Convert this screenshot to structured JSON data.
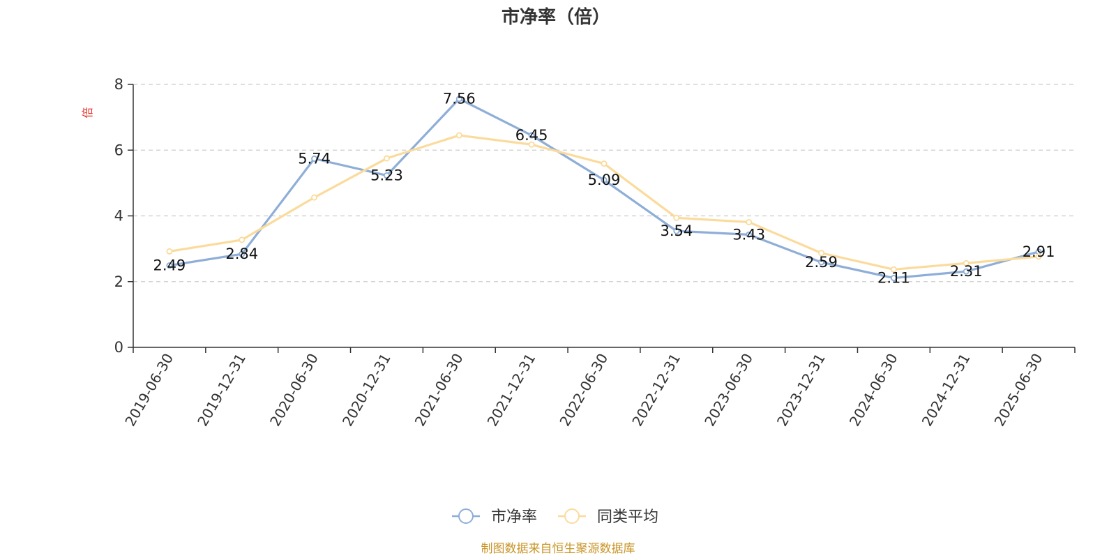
{
  "chart_data": {
    "type": "line",
    "title": "市净率（倍）",
    "ylabel": "倍",
    "ylim": [
      0,
      8
    ],
    "yticks": [
      0,
      2,
      4,
      6,
      8
    ],
    "grid": "horizontal-dashed",
    "legend_position": "bottom-center",
    "categories": [
      "2019-06-30",
      "2019-12-31",
      "2020-06-30",
      "2020-12-31",
      "2021-06-30",
      "2021-12-31",
      "2022-06-30",
      "2022-12-31",
      "2023-06-30",
      "2023-12-31",
      "2024-06-30",
      "2024-12-31",
      "2025-06-30"
    ],
    "series": [
      {
        "name": "市净率",
        "color": "#8eaed8",
        "values": [
          2.49,
          2.84,
          5.74,
          5.23,
          7.56,
          6.45,
          5.09,
          3.54,
          3.43,
          2.59,
          2.11,
          2.31,
          2.91
        ],
        "labels": [
          "2.49",
          "2.84",
          "5.74",
          "5.23",
          "7.56",
          "6.45",
          "5.09",
          "3.54",
          "3.43",
          "2.59",
          "2.11",
          "2.31",
          "2.91"
        ]
      },
      {
        "name": "同类平均",
        "color": "#fbdb9c",
        "values": [
          2.92,
          3.27,
          4.56,
          5.75,
          6.45,
          6.17,
          5.59,
          3.94,
          3.81,
          2.87,
          2.37,
          2.56,
          2.76
        ]
      }
    ],
    "source": "制图数据来自恒生聚源数据库",
    "colors": {
      "ylabel": "#e8322a",
      "source": "#c99426",
      "axis": "#333333",
      "grid": "#cccccc"
    }
  }
}
